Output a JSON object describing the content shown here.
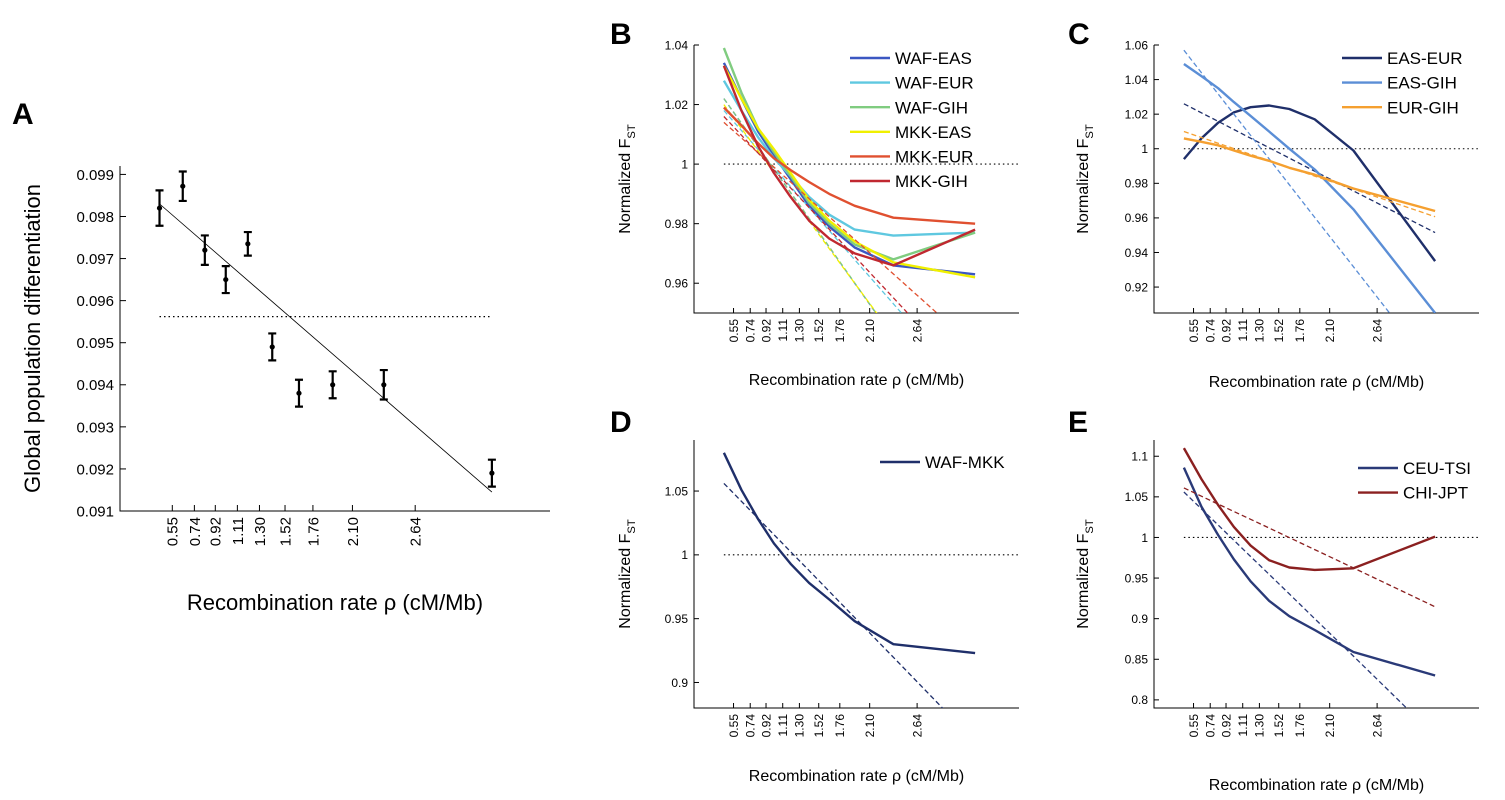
{
  "chart_data": [
    {
      "panel": "A",
      "type": "scatter",
      "xlabel": "Recombination rate ρ (cM/Mb)",
      "ylabel": "Global population differentiation",
      "x_ticks": [
        "0.55",
        "0.74",
        "0.92",
        "1.11",
        "1.30",
        "1.52",
        "1.76",
        "2.10",
        "2.64"
      ],
      "x_tick_values": [
        0.55,
        0.74,
        0.92,
        1.11,
        1.3,
        1.52,
        1.76,
        2.1,
        2.64
      ],
      "xlim": [
        0.1,
        3.8
      ],
      "ylim": [
        0.091,
        0.0992
      ],
      "y_ticks": [
        "0.091",
        "0.092",
        "0.093",
        "0.094",
        "0.095",
        "0.096",
        "0.097",
        "0.098",
        "0.099"
      ],
      "y_tick_values": [
        0.091,
        0.092,
        0.093,
        0.094,
        0.095,
        0.096,
        0.097,
        0.098,
        0.099
      ],
      "points": [
        {
          "x": 0.44,
          "y": 0.0982,
          "err": 0.00042
        },
        {
          "x": 0.64,
          "y": 0.09872,
          "err": 0.00035
        },
        {
          "x": 0.83,
          "y": 0.0972,
          "err": 0.00035
        },
        {
          "x": 1.01,
          "y": 0.0965,
          "err": 0.00032
        },
        {
          "x": 1.2,
          "y": 0.09735,
          "err": 0.00028
        },
        {
          "x": 1.41,
          "y": 0.0949,
          "err": 0.00032
        },
        {
          "x": 1.64,
          "y": 0.0938,
          "err": 0.00032
        },
        {
          "x": 1.93,
          "y": 0.094,
          "err": 0.00032
        },
        {
          "x": 2.37,
          "y": 0.094,
          "err": 0.00035
        },
        {
          "x": 3.3,
          "y": 0.0919,
          "err": 0.00032
        }
      ],
      "fit_line": {
        "x": [
          0.44,
          3.3
        ],
        "y": [
          0.0983,
          0.09145
        ]
      },
      "reference_line": {
        "y": 0.09562,
        "x": [
          0.44,
          3.3
        ]
      }
    },
    {
      "panel": "B",
      "type": "line",
      "xlabel": "Recombination rate ρ (cM/Mb)",
      "ylabel": "Normalized F",
      "ylabel_sub": "ST",
      "x_ticks": [
        "0.55",
        "0.74",
        "0.92",
        "1.11",
        "1.30",
        "1.52",
        "1.76",
        "2.10",
        "2.64"
      ],
      "x_tick_values": [
        0.55,
        0.74,
        0.92,
        1.11,
        1.3,
        1.52,
        1.76,
        2.1,
        2.64
      ],
      "xlim": [
        0.1,
        3.8
      ],
      "ylim": [
        0.95,
        1.04
      ],
      "y_ticks": [
        "0.96",
        "0.98",
        "1",
        "1.02",
        "1.04"
      ],
      "y_tick_values": [
        0.96,
        0.98,
        1.0,
        1.02,
        1.04
      ],
      "x": [
        0.44,
        0.64,
        0.83,
        1.01,
        1.2,
        1.41,
        1.64,
        1.93,
        2.37,
        3.3
      ],
      "legend_position": "top-right",
      "reference_line": 1.0,
      "series": [
        {
          "name": "WAF-EAS",
          "color": "#3b57c2",
          "values": [
            1.034,
            1.022,
            1.011,
            1.003,
            0.995,
            0.986,
            0.979,
            0.972,
            0.966,
            0.963
          ],
          "trend": [
            1.022,
            1.0137,
            1.0058,
            0.9983,
            0.9904,
            0.9817,
            0.9721,
            0.96,
            0.9417,
            0.9029
          ]
        },
        {
          "name": "WAF-EUR",
          "color": "#5fc8e0",
          "values": [
            1.028,
            1.018,
            1.009,
            1.002,
            0.996,
            0.989,
            0.983,
            0.978,
            0.976,
            0.977
          ],
          "trend": [
            1.018,
            1.0113,
            1.0049,
            0.9988,
            0.9924,
            0.9854,
            0.9776,
            0.9679,
            0.9531,
            0.9217
          ]
        },
        {
          "name": "WAF-GIH",
          "color": "#80cc80",
          "values": [
            1.039,
            1.024,
            1.012,
            1.004,
            0.996,
            0.987,
            0.98,
            0.973,
            0.968,
            0.977
          ],
          "trend": [
            1.022,
            1.0138,
            1.0059,
            0.9984,
            0.9905,
            0.9818,
            0.9722,
            0.9601,
            0.9418,
            0.903
          ]
        },
        {
          "name": "MKK-EAS",
          "color": "#f0f000",
          "values": [
            1.033,
            1.022,
            1.012,
            1.005,
            0.997,
            0.988,
            0.981,
            0.974,
            0.967,
            0.962
          ],
          "trend": [
            1.02,
            1.012,
            1.0044,
            0.9971,
            0.9894,
            0.9809,
            0.9716,
            0.96,
            0.9423,
            0.9048
          ]
        },
        {
          "name": "MKK-EUR",
          "color": "#e05030",
          "values": [
            1.019,
            1.013,
            1.007,
            1.002,
            0.998,
            0.994,
            0.99,
            0.986,
            0.982,
            0.98
          ],
          "trend": [
            1.014,
            1.0088,
            1.0038,
            0.999,
            0.994,
            0.9884,
            0.9823,
            0.9747,
            0.9631,
            0.9385
          ]
        },
        {
          "name": "MKK-GIH",
          "color": "#c02830",
          "values": [
            1.033,
            1.018,
            1.006,
            0.997,
            0.989,
            0.981,
            0.975,
            0.97,
            0.966,
            0.978
          ],
          "trend": [
            1.016,
            1.0097,
            1.0037,
            0.998,
            0.992,
            0.9854,
            0.9781,
            0.969,
            0.9551,
            0.9257
          ]
        }
      ]
    },
    {
      "panel": "C",
      "type": "line",
      "xlabel": "Recombination rate ρ (cM/Mb)",
      "ylabel": "Normalized F",
      "ylabel_sub": "ST",
      "x_ticks": [
        "0.55",
        "0.74",
        "0.92",
        "1.11",
        "1.30",
        "1.52",
        "1.76",
        "2.10",
        "2.64"
      ],
      "x_tick_values": [
        0.55,
        0.74,
        0.92,
        1.11,
        1.3,
        1.52,
        1.76,
        2.1,
        2.64
      ],
      "xlim": [
        0.1,
        3.8
      ],
      "ylim": [
        0.905,
        1.06
      ],
      "y_ticks": [
        "0.92",
        "0.94",
        "0.96",
        "0.98",
        "1",
        "1.02",
        "1.04",
        "1.06"
      ],
      "y_tick_values": [
        0.92,
        0.94,
        0.96,
        0.98,
        1.0,
        1.02,
        1.04,
        1.06
      ],
      "x": [
        0.44,
        0.64,
        0.83,
        1.01,
        1.2,
        1.41,
        1.64,
        1.93,
        2.37,
        3.3
      ],
      "legend_position": "top-right",
      "reference_line": 1.0,
      "series": [
        {
          "name": "EAS-EUR",
          "color": "#1f2f6a",
          "values": [
            0.994,
            1.006,
            1.015,
            1.021,
            1.024,
            1.025,
            1.023,
            1.017,
            0.999,
            0.935
          ],
          "trend": [
            1.026,
            1.0208,
            1.0159,
            1.0111,
            1.0061,
            1.0006,
            0.9946,
            0.987,
            0.9756,
            0.9515
          ]
        },
        {
          "name": "EAS-GIH",
          "color": "#5b8ed6",
          "values": [
            1.049,
            1.042,
            1.035,
            1.027,
            1.019,
            1.01,
            1.0,
            0.988,
            0.965,
            0.905
          ],
          "trend": [
            1.057,
            1.044,
            1.0317,
            1.02,
            1.0077,
            0.9942,
            0.9792,
            0.9603,
            0.9318,
            0.8712
          ]
        },
        {
          "name": "EUR-GIH",
          "color": "#f5a030",
          "values": [
            1.006,
            1.004,
            1.002,
            0.999,
            0.996,
            0.993,
            0.989,
            0.985,
            0.977,
            0.964
          ],
          "trend": [
            1.01,
            1.0065,
            1.0032,
            1.0001,
            0.9968,
            0.9932,
            0.9892,
            0.9842,
            0.9767,
            0.9607
          ]
        }
      ]
    },
    {
      "panel": "D",
      "type": "line",
      "xlabel": "Recombination rate ρ (cM/Mb)",
      "ylabel": "Normalized F",
      "ylabel_sub": "ST",
      "x_ticks": [
        "0.55",
        "0.74",
        "0.92",
        "1.11",
        "1.30",
        "1.52",
        "1.76",
        "2.10",
        "2.64"
      ],
      "x_tick_values": [
        0.55,
        0.74,
        0.92,
        1.11,
        1.3,
        1.52,
        1.76,
        2.1,
        2.64
      ],
      "xlim": [
        0.1,
        3.8
      ],
      "ylim": [
        0.88,
        1.09
      ],
      "y_ticks": [
        "0.9",
        "0.95",
        "1",
        "1.05"
      ],
      "y_tick_values": [
        0.9,
        0.95,
        1.0,
        1.05
      ],
      "x": [
        0.44,
        0.64,
        0.83,
        1.01,
        1.2,
        1.41,
        1.64,
        1.93,
        2.37,
        3.3
      ],
      "legend_position": "top-right",
      "reference_line": 1.0,
      "series": [
        {
          "name": "WAF-MKK",
          "color": "#1f2f6a",
          "values": [
            1.08,
            1.051,
            1.028,
            1.009,
            0.993,
            0.978,
            0.965,
            0.948,
            0.93,
            0.923
          ],
          "trend": [
            1.056,
            1.042,
            1.0286,
            1.0159,
            1.0025,
            0.9877,
            0.9714,
            0.9508,
            0.9197,
            0.8536
          ]
        }
      ]
    },
    {
      "panel": "E",
      "type": "line",
      "xlabel": "Recombination rate ρ (cM/Mb)",
      "ylabel": "Normalized F",
      "ylabel_sub": "ST",
      "x_ticks": [
        "0.55",
        "0.74",
        "0.92",
        "1.11",
        "1.30",
        "1.52",
        "1.76",
        "2.10",
        "2.64"
      ],
      "x_tick_values": [
        0.55,
        0.74,
        0.92,
        1.11,
        1.3,
        1.52,
        1.76,
        2.1,
        2.64
      ],
      "xlim": [
        0.1,
        3.8
      ],
      "ylim": [
        0.79,
        1.12
      ],
      "y_ticks": [
        "0.8",
        "0.85",
        "0.9",
        "0.95",
        "1",
        "1.05",
        "1.1"
      ],
      "y_tick_values": [
        0.8,
        0.85,
        0.9,
        0.95,
        1.0,
        1.05,
        1.1
      ],
      "x": [
        0.44,
        0.64,
        0.83,
        1.01,
        1.2,
        1.41,
        1.64,
        1.93,
        2.37,
        3.3
      ],
      "legend_position": "top-right",
      "reference_line": 1.0,
      "series": [
        {
          "name": "CEU-TSI",
          "color": "#2a3a78",
          "values": [
            1.086,
            1.038,
            1.003,
            0.973,
            0.946,
            0.922,
            0.903,
            0.886,
            0.859,
            0.83
          ],
          "trend": [
            1.056,
            1.0352,
            1.0153,
            0.9965,
            0.9766,
            0.9546,
            0.9305,
            0.9,
            0.8539,
            0.7557
          ]
        },
        {
          "name": "CHI-JPT",
          "color": "#8b2020",
          "values": [
            1.11,
            1.072,
            1.04,
            1.013,
            0.99,
            0.972,
            0.963,
            0.96,
            0.962,
            1.001
          ],
          "trend": [
            1.061,
            1.0508,
            1.0411,
            1.032,
            1.0223,
            1.0116,
            0.9998,
            0.985,
            0.9625,
            0.9146
          ]
        }
      ]
    }
  ]
}
